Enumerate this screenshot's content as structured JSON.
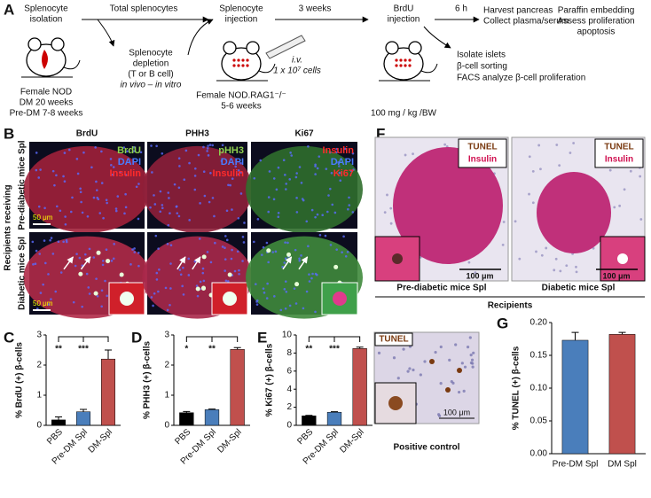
{
  "schema": {
    "letter": "A",
    "isolation": [
      "Splenocyte",
      "isolation"
    ],
    "total": "Total splenocytes",
    "depletion": [
      "Splenocyte",
      "depletion",
      "(T or B cell)"
    ],
    "depletion_mode": "in vivo – in vitro",
    "donor": [
      "Female NOD",
      "DM 20 weeks",
      "Pre-DM 7-8 weeks"
    ],
    "injection": [
      "Splenocyte",
      "injection"
    ],
    "interval": "3 weeks",
    "route": [
      "i.v.",
      "1 x 10⁷ cells"
    ],
    "recipient": [
      "Female NOD.RAG1⁻/⁻",
      "5-6 weeks"
    ],
    "brdu": [
      "BrdU",
      "injection"
    ],
    "chase": "6 h",
    "dose": "100 mg / kg /BW",
    "harvest": [
      "Harvest pancreas",
      "Collect plasma/serum"
    ],
    "histology": [
      "Paraffin embedding",
      "Assess proliferation",
      "apoptosis"
    ],
    "islets": [
      "Isolate islets",
      "β-cell sorting",
      "FACS analyze β-cell proliferation"
    ]
  },
  "panel_b": {
    "letter": "B",
    "columns": [
      "BrdU",
      "PHH3",
      "Ki67"
    ],
    "legends": [
      [
        "BrdU",
        "DAPI",
        "Insulin"
      ],
      [
        "pHH3",
        "DAPI",
        "Insulin"
      ],
      [
        "Insulin",
        "DAPI",
        "Ki67"
      ]
    ],
    "rows": [
      "Pre-diabetic mice Spl",
      "Diabetic mice Spl"
    ],
    "group": "Recipients receiving",
    "scale": "50 μm"
  },
  "panel_f": {
    "letter": "F",
    "legend": [
      "TUNEL",
      "Insulin"
    ],
    "scale": "100 μm",
    "captions": [
      "Pre-diabetic mice Spl",
      "Diabetic mice Spl"
    ],
    "group": "Recipients",
    "control_legend": "TUNEL",
    "control_caption": "Positive control"
  },
  "chart_data": [
    {
      "type": "bar",
      "letter": "C",
      "ylabel": "% BrdU (+) β-cells",
      "categories": [
        "PBS",
        "Pre-DM Spl",
        "DM-Spl"
      ],
      "values": [
        0.18,
        0.45,
        2.2
      ],
      "errors": [
        0.1,
        0.08,
        0.3
      ],
      "colors": [
        "#000000",
        "#4a7ebb",
        "#c0504d"
      ],
      "ylim": [
        0,
        3
      ],
      "yticks": [
        0,
        1,
        2,
        3
      ],
      "significance": [
        "**",
        "***"
      ]
    },
    {
      "type": "bar",
      "letter": "D",
      "ylabel": "% PHH3 (+) β-cells",
      "categories": [
        "PBS",
        "Pre-DM Spl",
        "DM-Spl"
      ],
      "values": [
        0.42,
        0.52,
        2.52
      ],
      "errors": [
        0.04,
        0.02,
        0.06
      ],
      "colors": [
        "#000000",
        "#4a7ebb",
        "#c0504d"
      ],
      "ylim": [
        0,
        3
      ],
      "yticks": [
        0,
        1,
        2,
        3
      ],
      "significance": [
        "*",
        "**"
      ]
    },
    {
      "type": "bar",
      "letter": "E",
      "ylabel": "% Ki67 (+) β-cells",
      "categories": [
        "PBS",
        "Pre-DM Spl",
        "DM-Spl"
      ],
      "values": [
        1.05,
        1.45,
        8.5
      ],
      "errors": [
        0.05,
        0.06,
        0.15
      ],
      "colors": [
        "#000000",
        "#4a7ebb",
        "#c0504d"
      ],
      "ylim": [
        0,
        10
      ],
      "yticks": [
        0,
        2,
        4,
        6,
        8,
        10
      ],
      "significance": [
        "**",
        "***"
      ]
    },
    {
      "type": "bar",
      "letter": "G",
      "ylabel": "% TUNEL (+) β-cells",
      "categories": [
        "Pre-DM Spl",
        "DM Spl"
      ],
      "values": [
        0.173,
        0.182
      ],
      "errors": [
        0.012,
        0.003
      ],
      "colors": [
        "#4a7ebb",
        "#c0504d"
      ],
      "ylim": [
        0,
        0.2
      ],
      "yticks": [
        {
          "value": 0,
          "label": "0.00"
        },
        {
          "value": 0.05,
          "label": "0.05"
        },
        {
          "value": 0.1,
          "label": "0.10"
        },
        {
          "value": 0.15,
          "label": "0.15"
        },
        {
          "value": 0.2,
          "label": "0.20"
        }
      ]
    }
  ]
}
